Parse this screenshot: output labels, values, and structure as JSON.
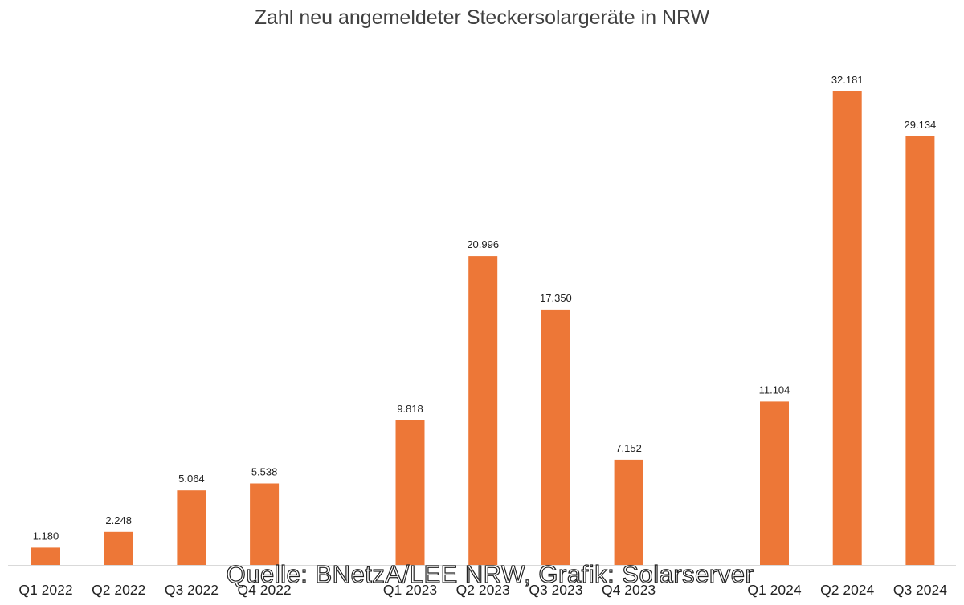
{
  "chart_data": {
    "type": "bar",
    "title": "Zahl neu angemeldeter Steckersolargeräte in NRW",
    "categories": [
      "Q1 2022",
      "Q2 2022",
      "Q3 2022",
      "Q4 2022",
      "Q1 2023",
      "Q2 2023",
      "Q3 2023",
      "Q4 2023",
      "Q1 2024",
      "Q2 2024",
      "Q3 2024"
    ],
    "values": [
      1180,
      2248,
      5064,
      5538,
      9818,
      20996,
      17350,
      7152,
      11104,
      32181,
      29134
    ],
    "value_labels": [
      "1.180",
      "2.248",
      "5.064",
      "5.538",
      "9.818",
      "20.996",
      "17.350",
      "7.152",
      "11.104",
      "32.181",
      "29.134"
    ],
    "xlabel": "",
    "ylabel": "",
    "ylim": [
      0,
      35000
    ],
    "grid": false,
    "bar_color": "#ED7737"
  },
  "source_note": "Quelle: BNetzA/LEE NRW, Grafik: Solarserver"
}
